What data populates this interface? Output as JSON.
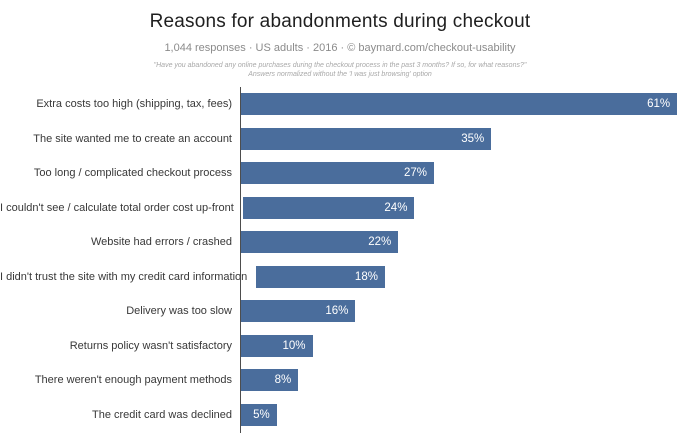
{
  "header": {
    "title": "Reasons for abandonments during checkout",
    "subtitle": "1,044 responses  ·  US adults  ·  2016  ·  ©  baymard.com/checkout-usability",
    "footnote_line1": "\"Have you abandoned any online purchases during the checkout process in the past 3 months? If so, for what reasons?\"",
    "footnote_line2": "Answers normalized without the 'I was just browsing' option"
  },
  "colors": {
    "bar": "#4a6d9c",
    "value_label": "#ffffff",
    "axis": "#4d4d4d",
    "title": "#1f1f1f",
    "subtitle": "#8b8b8b",
    "footnote": "#a8a8a8",
    "category_label": "#383838",
    "background": "#ffffff"
  },
  "chart_data": {
    "type": "bar",
    "orientation": "horizontal",
    "title": "Reasons for abandonments during checkout",
    "subtitle": "1,044 responses · US adults · 2016 · © baymard.com/checkout-usability",
    "categories": [
      "Extra costs too high (shipping, tax, fees)",
      "The site wanted me to create an account",
      "Too long / complicated checkout process",
      "I couldn't see / calculate total order cost up-front",
      "Website had errors / crashed",
      "I didn't trust the site with my credit card information",
      "Delivery was too slow",
      "Returns policy wasn't satisfactory",
      "There weren't enough payment methods",
      "The credit card was declined"
    ],
    "values": [
      61,
      35,
      27,
      24,
      22,
      18,
      16,
      10,
      8,
      5
    ],
    "unit": "%",
    "xlabel": "",
    "ylabel": "",
    "xlim": [
      0,
      62
    ],
    "grid": false,
    "legend": false,
    "value_labels_position": "inside-end"
  }
}
